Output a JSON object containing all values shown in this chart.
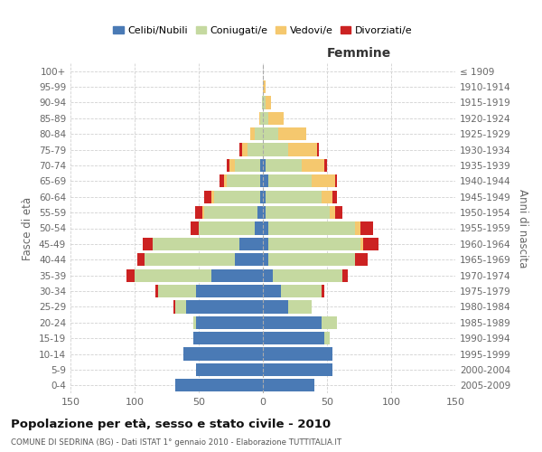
{
  "age_groups": [
    "0-4",
    "5-9",
    "10-14",
    "15-19",
    "20-24",
    "25-29",
    "30-34",
    "35-39",
    "40-44",
    "45-49",
    "50-54",
    "55-59",
    "60-64",
    "65-69",
    "70-74",
    "75-79",
    "80-84",
    "85-89",
    "90-94",
    "95-99",
    "100+"
  ],
  "birth_years": [
    "2005-2009",
    "2000-2004",
    "1995-1999",
    "1990-1994",
    "1985-1989",
    "1980-1984",
    "1975-1979",
    "1970-1974",
    "1965-1969",
    "1960-1964",
    "1955-1959",
    "1950-1954",
    "1945-1949",
    "1940-1944",
    "1935-1939",
    "1930-1934",
    "1925-1929",
    "1920-1924",
    "1915-1919",
    "1910-1914",
    "≤ 1909"
  ],
  "male": {
    "celibi": [
      68,
      52,
      62,
      54,
      52,
      60,
      52,
      40,
      22,
      18,
      6,
      4,
      2,
      2,
      2,
      0,
      0,
      0,
      0,
      0,
      0
    ],
    "coniugati": [
      0,
      0,
      0,
      0,
      2,
      8,
      30,
      60,
      70,
      68,
      44,
      42,
      36,
      26,
      20,
      12,
      6,
      2,
      1,
      0,
      0
    ],
    "vedovi": [
      0,
      0,
      0,
      0,
      0,
      0,
      0,
      0,
      0,
      0,
      0,
      1,
      2,
      2,
      4,
      4,
      4,
      1,
      0,
      0,
      0
    ],
    "divorziati": [
      0,
      0,
      0,
      0,
      0,
      2,
      2,
      6,
      6,
      8,
      6,
      6,
      6,
      4,
      2,
      2,
      0,
      0,
      0,
      0,
      0
    ]
  },
  "female": {
    "nubili": [
      40,
      54,
      54,
      48,
      46,
      20,
      14,
      8,
      4,
      4,
      4,
      2,
      2,
      4,
      2,
      0,
      0,
      0,
      0,
      0,
      0
    ],
    "coniugate": [
      0,
      0,
      0,
      4,
      12,
      18,
      32,
      54,
      68,
      72,
      68,
      50,
      44,
      34,
      28,
      20,
      12,
      4,
      2,
      0,
      0
    ],
    "vedove": [
      0,
      0,
      0,
      0,
      0,
      0,
      0,
      0,
      0,
      2,
      4,
      4,
      8,
      18,
      18,
      22,
      22,
      12,
      4,
      2,
      0
    ],
    "divorziate": [
      0,
      0,
      0,
      0,
      0,
      0,
      2,
      4,
      10,
      12,
      10,
      6,
      4,
      2,
      2,
      2,
      0,
      0,
      0,
      0,
      0
    ]
  },
  "colors": {
    "celibi": "#4a7ab5",
    "coniugati": "#c5d9a0",
    "vedovi": "#f5c86e",
    "divorziati": "#cc2222"
  },
  "title": "Popolazione per età, sesso e stato civile - 2010",
  "subtitle": "COMUNE DI SEDRINA (BG) - Dati ISTAT 1° gennaio 2010 - Elaborazione TUTTITALIA.IT",
  "xlabel_right": "Femmine",
  "ylabel_left": "Fasce di età",
  "ylabel_right": "Anni di nascita",
  "xlim": 150,
  "bg_color": "#ffffff",
  "grid_color": "#cccccc",
  "legend_labels": [
    "Celibi/Nubili",
    "Coniugati/e",
    "Vedovi/e",
    "Divorziati/e"
  ]
}
